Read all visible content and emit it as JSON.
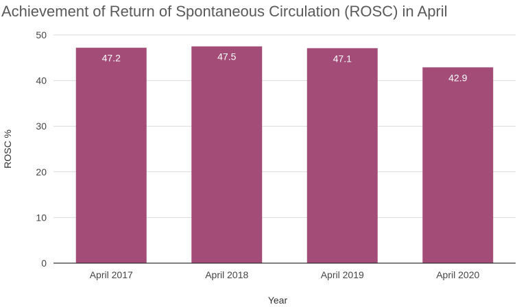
{
  "chart_data": {
    "type": "bar",
    "title": "Achievement of Return of Spontaneous Circulation (ROSC) in April",
    "xlabel": "Year",
    "ylabel": "ROSC %",
    "categories": [
      "April 2017",
      "April 2018",
      "April 2019",
      "April 2020"
    ],
    "values": [
      47.2,
      47.5,
      47.1,
      42.9
    ],
    "data_labels": [
      "47.2",
      "47.5",
      "47.1",
      "42.9"
    ],
    "ylim": [
      0,
      50
    ],
    "yticks": [
      0,
      10,
      20,
      30,
      40,
      50
    ],
    "grid": true,
    "legend": "none",
    "bar_color": "#a34c78"
  }
}
